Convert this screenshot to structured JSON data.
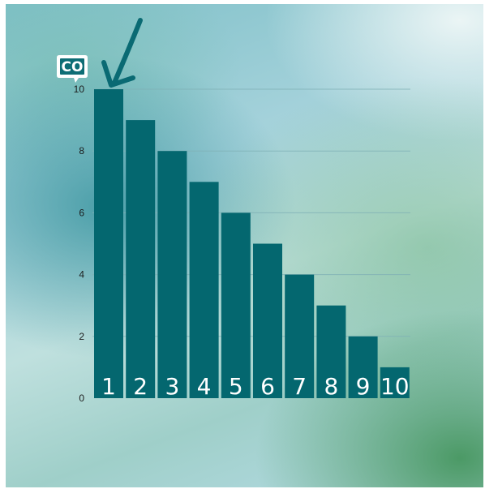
{
  "logo": {
    "text": "CO"
  },
  "colors": {
    "bar": "#04676f",
    "arrow": "#0a6a73",
    "grid": "#7fb0b5",
    "bar_label": "#ffffff"
  },
  "chart_data": {
    "type": "bar",
    "categories": [
      "1",
      "2",
      "3",
      "4",
      "5",
      "6",
      "7",
      "8",
      "9",
      "10"
    ],
    "values": [
      10,
      9,
      8,
      7,
      6,
      5,
      4,
      3,
      2,
      1
    ],
    "title": "",
    "xlabel": "",
    "ylabel": "",
    "ylim": [
      0,
      10
    ],
    "yticks": [
      "0",
      "2",
      "4",
      "6",
      "8",
      "10"
    ],
    "grid": true,
    "annotations": [
      {
        "type": "arrow",
        "target_category": "1"
      }
    ]
  }
}
